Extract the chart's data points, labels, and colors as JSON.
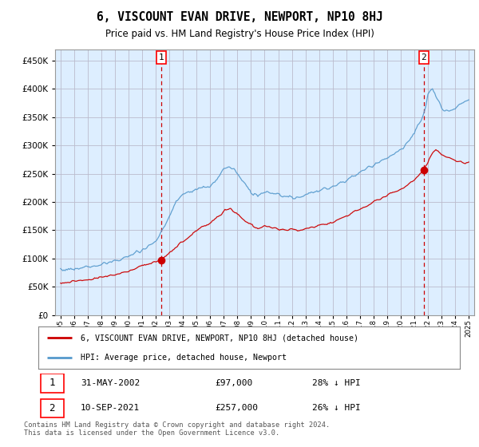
{
  "title": "6, VISCOUNT EVAN DRIVE, NEWPORT, NP10 8HJ",
  "subtitle": "Price paid vs. HM Land Registry's House Price Index (HPI)",
  "legend_label_red": "6, VISCOUNT EVAN DRIVE, NEWPORT, NP10 8HJ (detached house)",
  "legend_label_blue": "HPI: Average price, detached house, Newport",
  "annotation1_label": "1",
  "annotation1_date": "31-MAY-2002",
  "annotation1_price": "£97,000",
  "annotation1_hpi": "28% ↓ HPI",
  "annotation2_label": "2",
  "annotation2_date": "10-SEP-2021",
  "annotation2_price": "£257,000",
  "annotation2_hpi": "26% ↓ HPI",
  "footer": "Contains HM Land Registry data © Crown copyright and database right 2024.\nThis data is licensed under the Open Government Licence v3.0.",
  "ylim": [
    0,
    470000
  ],
  "yticks": [
    0,
    50000,
    100000,
    150000,
    200000,
    250000,
    300000,
    350000,
    400000,
    450000
  ],
  "red_color": "#cc0000",
  "blue_color": "#5599cc",
  "chart_bg": "#ddeeff",
  "background_color": "#ffffff",
  "grid_color": "#bbbbcc"
}
